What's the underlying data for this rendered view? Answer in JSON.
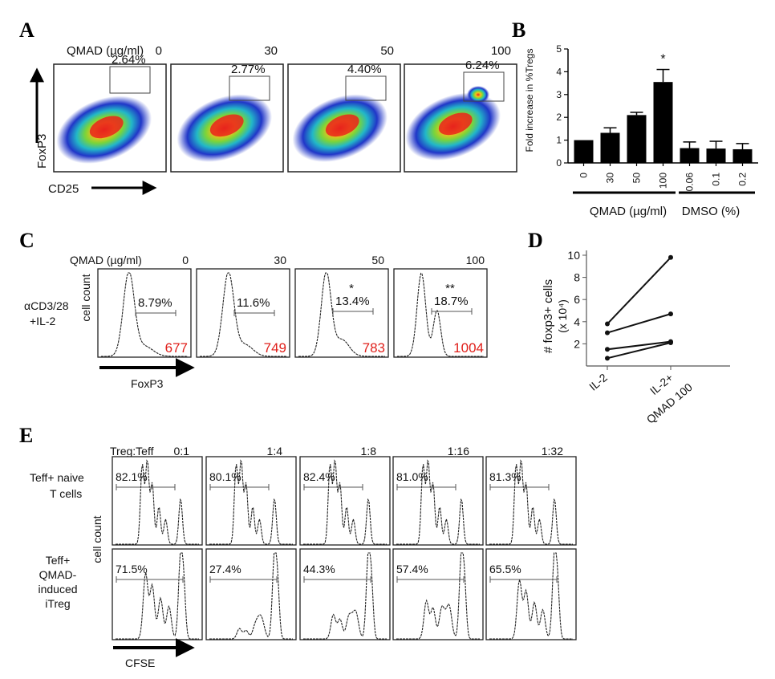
{
  "panel_labels": [
    "A",
    "B",
    "C",
    "D",
    "E"
  ],
  "panel_a": {
    "header_label": "QMAD (µg/ml)",
    "concentrations": [
      "0",
      "30",
      "50",
      "100"
    ],
    "gate_percents": [
      "2.64%",
      "2.77%",
      "4.40%",
      "6.24%"
    ],
    "y_axis": "FoxP3",
    "x_axis": "CD25"
  },
  "panel_c": {
    "header_label": "QMAD (µg/ml)",
    "concentrations": [
      "0",
      "30",
      "50",
      "100"
    ],
    "condition_line1": "αCD3/28",
    "condition_line2": "+IL-2",
    "y_axis": "cell count",
    "x_axis": "FoxP3",
    "gate_percents": [
      "8.79%",
      "11.6%",
      "13.4%",
      "18.7%"
    ],
    "significance": [
      "",
      "",
      "*",
      "**"
    ],
    "mfi_values": [
      "677",
      "749",
      "783",
      "1004"
    ],
    "mfi_color": "#e0201b"
  },
  "panel_e": {
    "header_label": "Treg:Teff",
    "ratios": [
      "0:1",
      "1:4",
      "1:8",
      "1:16",
      "1:32"
    ],
    "row1_label": [
      "Teff+ naive",
      "T cells"
    ],
    "row2_label": [
      "Teff+",
      "QMAD-",
      "induced",
      "iTreg"
    ],
    "y_axis": "cell count",
    "x_axis": "CFSE",
    "row1_percents": [
      "82.1%",
      "80.1%",
      "82.4%",
      "81.0%",
      "81.3%"
    ],
    "row2_percents": [
      "71.5%",
      "27.4%",
      "44.3%",
      "57.4%",
      "65.5%"
    ]
  },
  "chart_data": [
    {
      "panel": "B",
      "type": "bar",
      "ylabel": "Fold increase in %Tregs",
      "categories": [
        "0",
        "30",
        "50",
        "100",
        "0.06",
        "0.1",
        "0.2"
      ],
      "values": [
        1.0,
        1.32,
        2.1,
        3.55,
        0.65,
        0.63,
        0.6
      ],
      "errors": [
        0.0,
        0.22,
        0.12,
        0.55,
        0.27,
        0.32,
        0.25
      ],
      "significance": [
        "",
        "",
        "",
        "*",
        "",
        "",
        ""
      ],
      "groups": [
        {
          "label": "QMAD (µg/ml)",
          "start": 0,
          "end": 3
        },
        {
          "label": "DMSO (%)",
          "start": 4,
          "end": 6
        }
      ],
      "ylim": [
        0,
        5
      ],
      "yticks": [
        "0",
        "1",
        "2",
        "3",
        "4",
        "5"
      ],
      "bar_color": "#000000"
    },
    {
      "panel": "D",
      "type": "line",
      "ylabel_line1": "# foxp3+ cells",
      "ylabel_line2": "(x 10⁴)",
      "x_categories": [
        "IL-2",
        "IL-2+",
        "QMAD 100"
      ],
      "ylim": [
        0,
        10
      ],
      "yticks": [
        "2",
        "4",
        "6",
        "8",
        "10"
      ],
      "pairs": [
        [
          3.8,
          9.8
        ],
        [
          3.0,
          4.7
        ],
        [
          1.5,
          2.2
        ],
        [
          0.7,
          2.1
        ]
      ]
    }
  ]
}
